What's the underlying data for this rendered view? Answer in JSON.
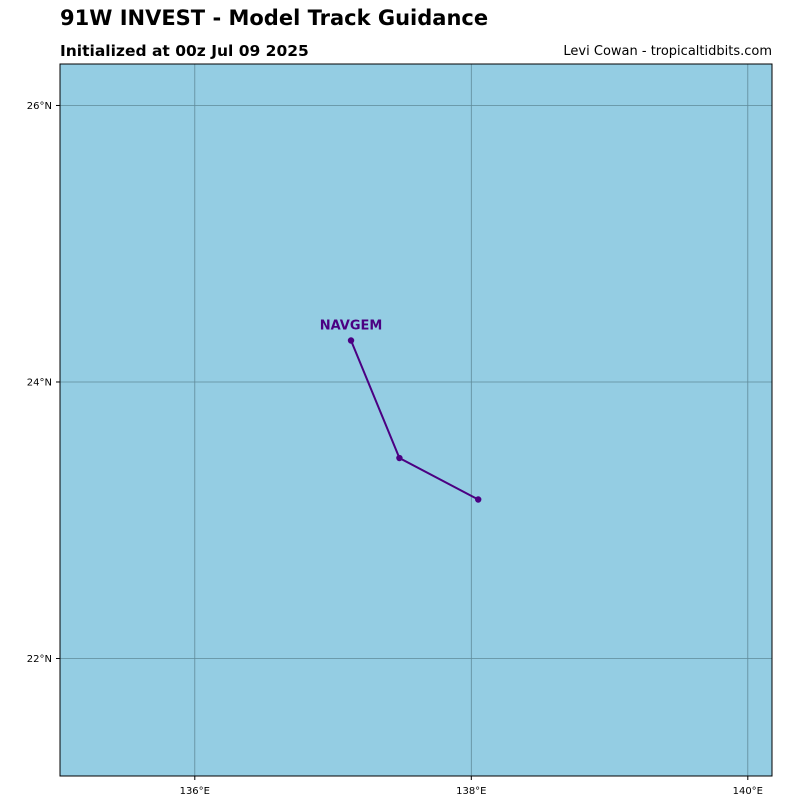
{
  "title": "91W INVEST - Model Track Guidance",
  "subtitle": "Initialized at 00z Jul 09 2025",
  "credit": "Levi Cowan - tropicaltidbits.com",
  "colors": {
    "ocean": "#94cde3",
    "grid": "#5f8a99",
    "track": "#4b0082"
  },
  "map": {
    "lon_range": [
      135.025,
      140.175
    ],
    "lat_range": [
      21.15,
      26.3
    ],
    "lon_ticks": [
      {
        "value": 136,
        "label": "136°E"
      },
      {
        "value": 138,
        "label": "138°E"
      },
      {
        "value": 140,
        "label": "140°E"
      }
    ],
    "lat_ticks": [
      {
        "value": 22,
        "label": "22°N"
      },
      {
        "value": 24,
        "label": "24°N"
      },
      {
        "value": 26,
        "label": "26°N"
      }
    ]
  },
  "tracks": [
    {
      "name": "NAVGEM",
      "points": [
        {
          "lon": 137.13,
          "lat": 24.3
        },
        {
          "lon": 137.48,
          "lat": 23.45
        },
        {
          "lon": 138.05,
          "lat": 23.15
        }
      ]
    }
  ]
}
